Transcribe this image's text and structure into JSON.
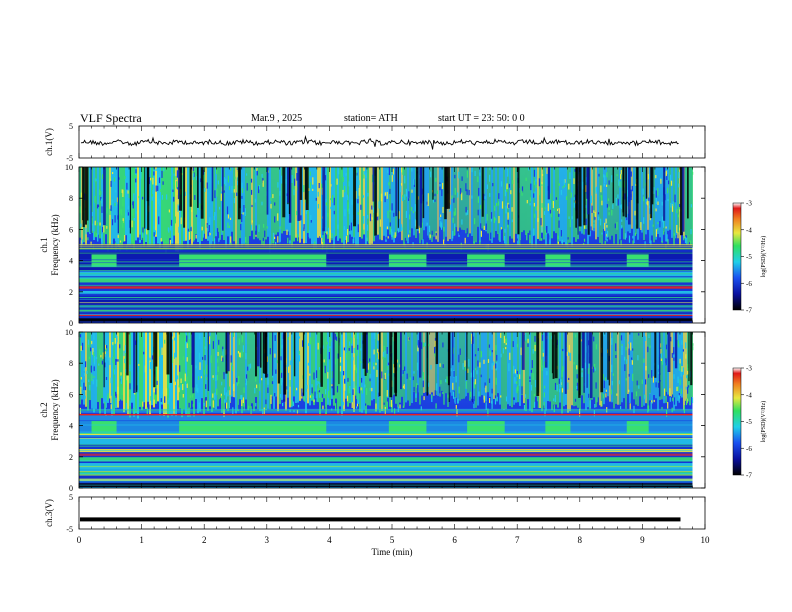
{
  "header": {
    "title": "VLF  Spectra",
    "date": "Mar.9   , 2025",
    "station": "station= ATH",
    "start": "start  UT  =    23: 50: 0 0"
  },
  "chart_data": [
    {
      "type": "line",
      "panel": "ch1-waveform",
      "ylabel": "ch.1(V)",
      "ylim": [
        -5,
        5
      ],
      "yticks": [
        "5",
        "-5"
      ],
      "x_range": [
        0,
        10
      ],
      "note_series": "noisy waveform around 0 V"
    },
    {
      "type": "heatmap",
      "panel": "ch1-spectrogram",
      "ylabel_line1": "ch.1",
      "ylabel_line2": "Frequency  (kHz)",
      "ylim": [
        0,
        10
      ],
      "yticks": [
        "0",
        "2",
        "4",
        "6",
        "8",
        "10"
      ],
      "x_range": [
        0,
        9.8
      ],
      "colorbar": {
        "label": "log(PSD)(V²/Hz)",
        "range": [
          -7,
          -3
        ],
        "ticks": [
          "-3",
          "-4",
          "-5",
          "-6",
          "-7"
        ]
      },
      "transmitter_segments_min": [
        [
          0.2,
          0.6
        ],
        [
          1.6,
          3.95
        ],
        [
          4.95,
          5.55
        ],
        [
          6.2,
          6.8
        ],
        [
          7.45,
          7.85
        ],
        [
          8.75,
          9.1
        ]
      ]
    },
    {
      "type": "heatmap",
      "panel": "ch2-spectrogram",
      "ylabel_line1": "ch.2",
      "ylabel_line2": "Frequency  (kHz)",
      "ylim": [
        0,
        10
      ],
      "yticks": [
        "0",
        "2",
        "4",
        "6",
        "8",
        "10"
      ],
      "x_range": [
        0,
        9.8
      ],
      "colorbar": {
        "label": "log(PSD)(V²/Hz)",
        "range": [
          -7,
          -3
        ],
        "ticks": [
          "-3",
          "-4",
          "-5",
          "-6",
          "-7"
        ]
      },
      "transmitter_segments_min": [
        [
          0.2,
          0.6
        ],
        [
          1.6,
          3.95
        ],
        [
          4.95,
          5.55
        ],
        [
          6.2,
          6.8
        ],
        [
          7.45,
          7.85
        ],
        [
          8.75,
          9.1
        ]
      ]
    },
    {
      "type": "line",
      "panel": "ch3-waveform",
      "ylabel": "ch.3(V)",
      "ylim": [
        -5,
        5
      ],
      "yticks": [
        "5",
        "-5"
      ],
      "x_range": [
        0,
        9.8
      ],
      "xlabel": "Time  (min)",
      "xticks": [
        "0",
        "1",
        "2",
        "3",
        "4",
        "5",
        "6",
        "7",
        "8",
        "9",
        "10"
      ],
      "constant_value": -2
    }
  ],
  "colors": {
    "bg_blue": "#1a3de0",
    "deep_blue": "#0a15a8",
    "cyan": "#22c8e8",
    "green": "#38e070",
    "yellow": "#e8e840",
    "red": "#e82020",
    "black": "#000000"
  }
}
